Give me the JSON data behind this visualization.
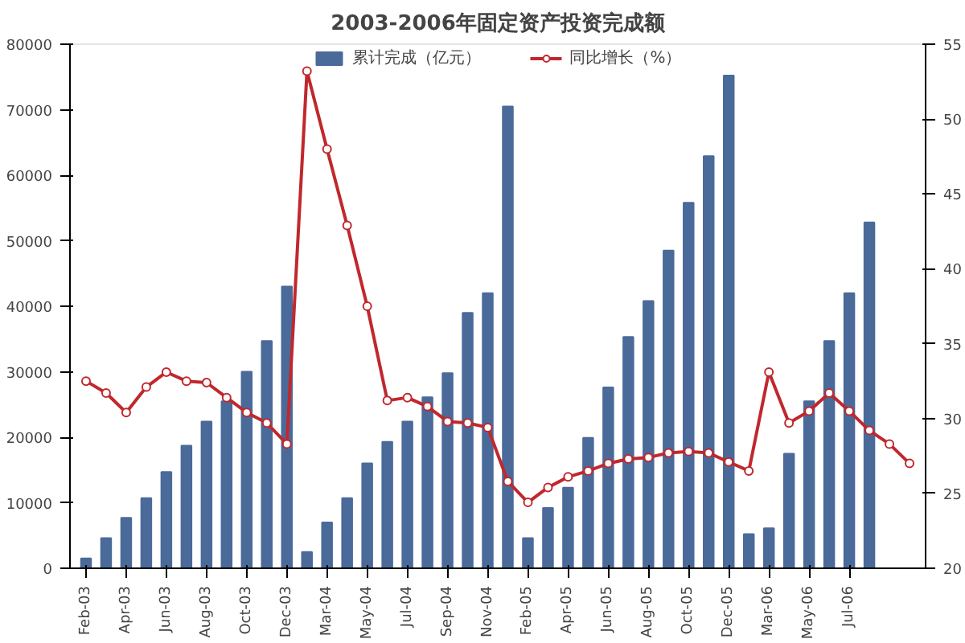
{
  "chart_data": {
    "type": "bar",
    "title": "2003-2006年固定资产投资完成额",
    "categories": [
      "Feb-03",
      null,
      "Apr-03",
      null,
      "Jun-03",
      null,
      "Aug-03",
      null,
      "Oct-03",
      null,
      "Dec-03",
      null,
      "Mar-04",
      null,
      "May-04",
      null,
      "Jul-04",
      null,
      "Sep-04",
      null,
      "Nov-04",
      null,
      "Feb-05",
      null,
      "Apr-05",
      null,
      "Jun-05",
      null,
      "Aug-05",
      null,
      "Oct-05",
      null,
      "Dec-05",
      null,
      "Mar-06",
      null,
      "May-06",
      null,
      "Jul-06",
      null,
      null,
      null
    ],
    "series": [
      {
        "name": "累计完成（亿元）",
        "axis": "y",
        "color": "#4a6a9a",
        "values": [
          1500,
          4600,
          7700,
          10700,
          14700,
          18700,
          22400,
          25500,
          30000,
          34700,
          43000,
          2500,
          7000,
          10700,
          16000,
          19300,
          22400,
          26100,
          29800,
          39000,
          42000,
          70500,
          4600,
          9200,
          12300,
          19900,
          27600,
          35300,
          40800,
          48500,
          55800,
          62900,
          75200,
          5200,
          6100,
          17500,
          25500,
          34700,
          42000,
          52800,
          null,
          null
        ]
      },
      {
        "name": "同比增长（%）",
        "type": "line",
        "axis": "y2",
        "color": "#c0282d",
        "marker": "circle",
        "values": [
          32.5,
          31.7,
          30.4,
          32.1,
          33.1,
          32.5,
          32.4,
          31.4,
          30.4,
          29.7,
          28.3,
          53.2,
          48.0,
          42.9,
          37.5,
          31.2,
          31.4,
          30.8,
          29.8,
          29.7,
          29.4,
          25.8,
          24.4,
          25.4,
          26.1,
          26.5,
          27.0,
          27.3,
          27.4,
          27.7,
          27.8,
          27.7,
          27.1,
          26.5,
          33.1,
          29.7,
          30.5,
          31.7,
          30.5,
          29.2,
          28.3,
          27.0
        ]
      }
    ],
    "ylim": [
      0,
      80000
    ],
    "yticks": [
      0,
      10000,
      20000,
      30000,
      40000,
      50000,
      60000,
      70000,
      80000
    ],
    "y2lim": [
      20,
      55
    ],
    "y2ticks": [
      20,
      25,
      30,
      35,
      40,
      45,
      50,
      55
    ],
    "grid": false,
    "legend": "top"
  }
}
